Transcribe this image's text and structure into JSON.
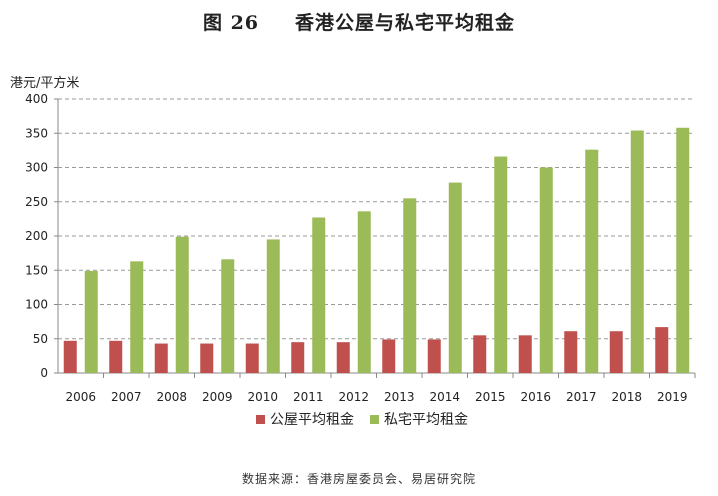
{
  "title": {
    "figure": "图 26",
    "text": "香港公屋与私宅平均租金"
  },
  "source": "数据来源：香港房屋委员会、易居研究院",
  "chart_data": {
    "type": "bar",
    "ylabel": "港元/平方米",
    "ylim": [
      0,
      400
    ],
    "yticks": [
      0,
      50,
      100,
      150,
      200,
      250,
      300,
      350,
      400
    ],
    "grid": true,
    "legend": "bottom",
    "categories": [
      "2006",
      "2007",
      "2008",
      "2009",
      "2010",
      "2011",
      "2012",
      "2013",
      "2014",
      "2015",
      "2016",
      "2017",
      "2018",
      "2019"
    ],
    "series": [
      {
        "name": "公屋平均租金",
        "color": "#c0504d",
        "values": [
          47,
          47,
          43,
          43,
          43,
          45,
          45,
          49,
          49,
          55,
          55,
          61,
          61,
          67
        ]
      },
      {
        "name": "私宅平均租金",
        "color": "#9bbb59",
        "values": [
          149,
          163,
          199,
          166,
          195,
          227,
          236,
          255,
          278,
          316,
          300,
          326,
          354,
          358
        ]
      }
    ]
  }
}
